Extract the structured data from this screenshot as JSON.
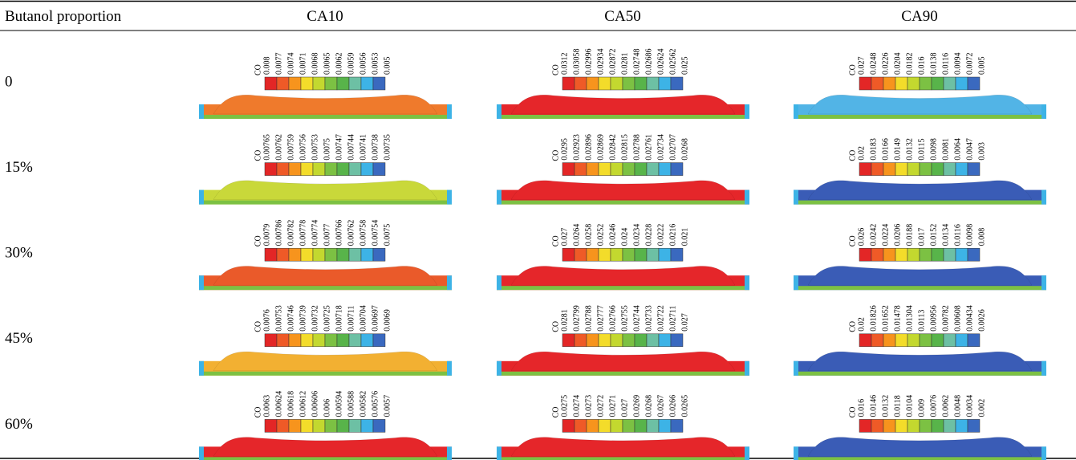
{
  "table": {
    "header": [
      "Butanol proportion",
      "CA10",
      "CA50",
      "CA90"
    ],
    "colorbar_colors": [
      "#e32626",
      "#ef5a27",
      "#f7941d",
      "#f3dc2a",
      "#c3d82f",
      "#7cc143",
      "#58b44a",
      "#6dc0a4",
      "#3db3e6",
      "#3a69bf"
    ],
    "rows": [
      {
        "label": "0",
        "cells": [
          {
            "legend_title": "CO",
            "legend_values": [
              "0.008",
              "0.0077",
              "0.0074",
              "0.0071",
              "0.0068",
              "0.0065",
              "0.0062",
              "0.0059",
              "0.0056",
              "0.0053",
              "0.005"
            ],
            "color": "#ef7a2c"
          },
          {
            "legend_title": "CO",
            "legend_values": [
              "0.0312",
              "0.03058",
              "0.02996",
              "0.02934",
              "0.02872",
              "0.0281",
              "0.02748",
              "0.02686",
              "0.02624",
              "0.02562",
              "0.025"
            ],
            "color": "#e5262a"
          },
          {
            "legend_title": "CO",
            "legend_values": [
              "0.027",
              "0.0248",
              "0.0226",
              "0.0204",
              "0.0182",
              "0.016",
              "0.0138",
              "0.0116",
              "0.0094",
              "0.0072",
              "0.005"
            ],
            "color": "#52b4e6"
          }
        ]
      },
      {
        "label": "15%",
        "cells": [
          {
            "legend_title": "CO",
            "legend_values": [
              "0.00765",
              "0.00762",
              "0.00759",
              "0.00756",
              "0.00753",
              "0.0075",
              "0.00747",
              "0.00744",
              "0.00741",
              "0.00738",
              "0.00735"
            ],
            "color": "#c9d83a"
          },
          {
            "legend_title": "CO",
            "legend_values": [
              "0.0295",
              "0.02923",
              "0.02896",
              "0.02869",
              "0.02842",
              "0.02815",
              "0.02788",
              "0.02761",
              "0.02734",
              "0.02707",
              "0.0268"
            ],
            "color": "#e5262a"
          },
          {
            "legend_title": "CO",
            "legend_values": [
              "0.02",
              "0.0183",
              "0.0166",
              "0.0149",
              "0.0132",
              "0.0115",
              "0.0098",
              "0.0081",
              "0.0064",
              "0.0047",
              "0.003"
            ],
            "color": "#3a5cb6"
          }
        ]
      },
      {
        "label": "30%",
        "cells": [
          {
            "legend_title": "CO",
            "legend_values": [
              "0.0079",
              "0.00786",
              "0.00782",
              "0.00778",
              "0.00774",
              "0.0077",
              "0.00766",
              "0.00762",
              "0.00758",
              "0.00754",
              "0.0075"
            ],
            "color": "#ea5a2a"
          },
          {
            "legend_title": "CO",
            "legend_values": [
              "0.027",
              "0.0264",
              "0.0258",
              "0.0252",
              "0.0246",
              "0.024",
              "0.0234",
              "0.0228",
              "0.0222",
              "0.0216",
              "0.021"
            ],
            "color": "#e5262a"
          },
          {
            "legend_title": "CO",
            "legend_values": [
              "0.026",
              "0.0242",
              "0.0224",
              "0.0206",
              "0.0188",
              "0.017",
              "0.0152",
              "0.0134",
              "0.0116",
              "0.0098",
              "0.008"
            ],
            "color": "#3a5cb6"
          }
        ]
      },
      {
        "label": "45%",
        "cells": [
          {
            "legend_title": "CO",
            "legend_values": [
              "0.0076",
              "0.00753",
              "0.00746",
              "0.00739",
              "0.00732",
              "0.00725",
              "0.00718",
              "0.00711",
              "0.00704",
              "0.00697",
              "0.0069"
            ],
            "color": "#f2b032"
          },
          {
            "legend_title": "CO",
            "legend_values": [
              "0.0281",
              "0.02799",
              "0.02788",
              "0.02777",
              "0.02766",
              "0.02755",
              "0.02744",
              "0.02733",
              "0.02722",
              "0.02711",
              "0.027"
            ],
            "color": "#e5262a"
          },
          {
            "legend_title": "CO",
            "legend_values": [
              "0.02",
              "0.01826",
              "0.01652",
              "0.01478",
              "0.01304",
              "0.0113",
              "0.00956",
              "0.00782",
              "0.00608",
              "0.00434",
              "0.0026"
            ],
            "color": "#3a5cb6"
          }
        ]
      },
      {
        "label": "60%",
        "cells": [
          {
            "legend_title": "CO",
            "legend_values": [
              "0.0063",
              "0.00624",
              "0.00618",
              "0.00612",
              "0.00606",
              "0.006",
              "0.00594",
              "0.00588",
              "0.00582",
              "0.00576",
              "0.0057"
            ],
            "color": "#e5262a"
          },
          {
            "legend_title": "CO",
            "legend_values": [
              "0.0275",
              "0.0274",
              "0.0273",
              "0.0272",
              "0.0271",
              "0.027",
              "0.0269",
              "0.0268",
              "0.0267",
              "0.0266",
              "0.0265"
            ],
            "color": "#e5262a"
          },
          {
            "legend_title": "CO",
            "legend_values": [
              "0.016",
              "0.0146",
              "0.0132",
              "0.0118",
              "0.0104",
              "0.009",
              "0.0076",
              "0.0062",
              "0.0048",
              "0.0034",
              "0.002"
            ],
            "color": "#3a5cb6"
          }
        ]
      }
    ]
  }
}
